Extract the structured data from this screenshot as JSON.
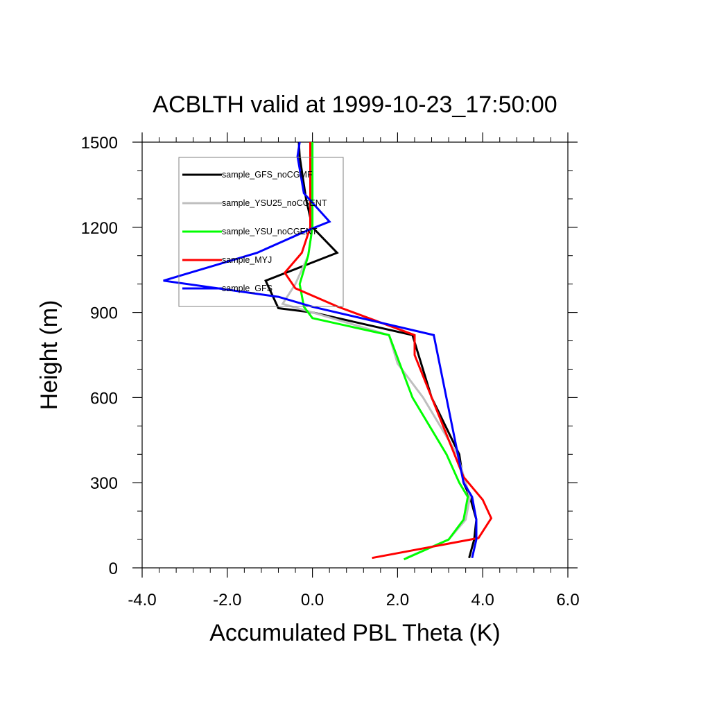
{
  "chart_data": {
    "type": "line",
    "title": "ACBLTH valid at 1999-10-23_17:50:00",
    "xlabel": "Accumulated PBL Theta (K)",
    "ylabel": "Height (m)",
    "xlim": [
      -4.0,
      6.0
    ],
    "ylim": [
      0,
      1500
    ],
    "xticks": [
      -4.0,
      -2.0,
      0.0,
      2.0,
      4.0,
      6.0
    ],
    "xtick_labels": [
      "-4.0",
      "-2.0",
      "0.0",
      "2.0",
      "4.0",
      "6.0"
    ],
    "yticks": [
      0,
      300,
      600,
      900,
      1200,
      1500
    ],
    "ytick_labels": [
      "0",
      "300",
      "600",
      "900",
      "1200",
      "1500"
    ],
    "grid": false,
    "legend_position": "top-left",
    "series": [
      {
        "name": "sample_GFS_noCGMF",
        "color": "#000000",
        "x": [
          3.68,
          3.8,
          3.85,
          3.7,
          3.55,
          3.45,
          2.8,
          2.35,
          0.0,
          -0.8,
          -1.1,
          0.58,
          0.0,
          -0.15,
          -0.2,
          -0.3,
          -0.32
        ],
        "y": [
          35,
          100,
          170,
          250,
          300,
          400,
          600,
          820,
          900,
          915,
          1012,
          1110,
          1200,
          1300,
          1350,
          1450,
          1500
        ]
      },
      {
        "name": "sample_YSU25_noCGENT",
        "color": "#bfbfbf",
        "x": [
          2.2,
          3.2,
          3.6,
          3.7,
          3.6,
          3.4,
          2.6,
          2.0,
          1.8,
          0.0,
          -0.7,
          -0.4,
          -0.1,
          0.0,
          0.0,
          0.0,
          0.0
        ],
        "y": [
          35,
          100,
          170,
          250,
          300,
          400,
          600,
          720,
          820,
          900,
          930,
          1000,
          1100,
          1200,
          1300,
          1400,
          1500
        ]
      },
      {
        "name": "sample_YSU_noCGENT",
        "color": "#00ff00",
        "x": [
          2.15,
          3.2,
          3.55,
          3.65,
          3.45,
          3.15,
          2.35,
          1.8,
          0.0,
          -0.2,
          -0.3,
          -0.1,
          0.0,
          0.0,
          0.0,
          0.0
        ],
        "y": [
          30,
          100,
          170,
          250,
          300,
          400,
          600,
          820,
          880,
          920,
          1000,
          1100,
          1200,
          1300,
          1400,
          1500
        ]
      },
      {
        "name": "sample_MYJ",
        "color": "#ff0000",
        "x": [
          1.4,
          3.9,
          4.2,
          4.0,
          3.55,
          2.4,
          2.4,
          0.6,
          -0.4,
          -0.65,
          -0.25,
          -0.05,
          -0.05,
          -0.05,
          -0.05,
          -0.05,
          -0.05
        ],
        "y": [
          35,
          105,
          175,
          240,
          320,
          750,
          820,
          920,
          985,
          1040,
          1110,
          1200,
          1250,
          1300,
          1400,
          1450,
          1500
        ]
      },
      {
        "name": "sample_GFS",
        "color": "#0000ff",
        "x": [
          3.75,
          3.85,
          3.85,
          3.75,
          3.55,
          2.85,
          0.0,
          -0.8,
          -3.5,
          -1.3,
          -0.1,
          0.4,
          -0.2,
          -0.35,
          -0.3
        ],
        "y": [
          35,
          100,
          170,
          250,
          300,
          820,
          920,
          955,
          1012,
          1110,
          1190,
          1220,
          1320,
          1450,
          1500
        ]
      }
    ]
  }
}
